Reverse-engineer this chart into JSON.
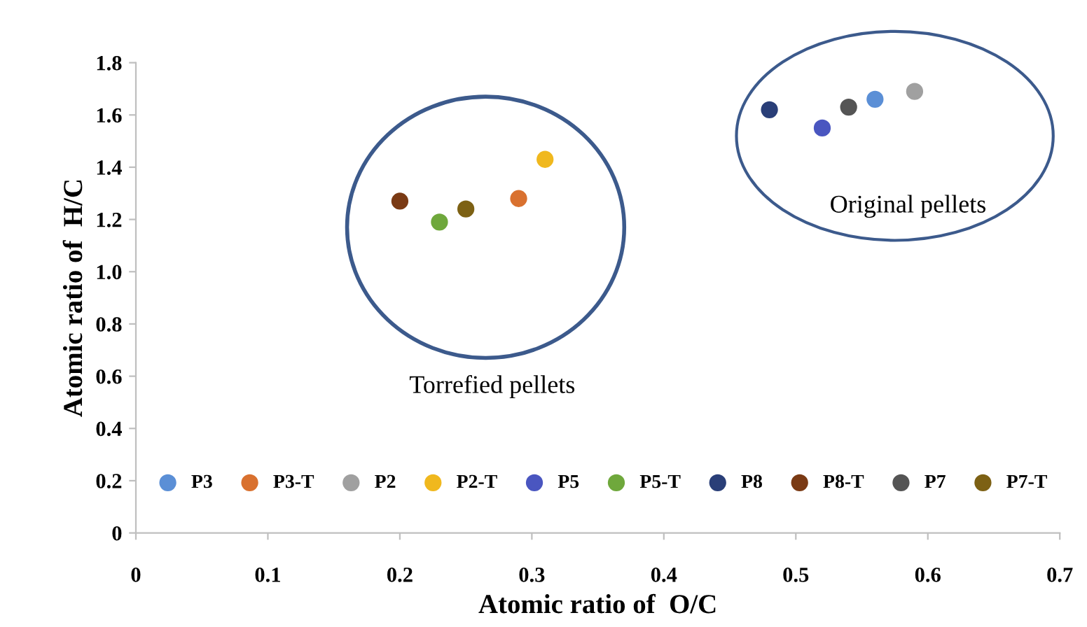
{
  "chart_data": {
    "type": "scatter",
    "xlabel": "Atomic ratio of  O/C",
    "ylabel": "Atomic ratio of  H/C",
    "xlim": [
      0,
      0.7
    ],
    "xticks": [
      0,
      0.1,
      0.2,
      0.3,
      0.4,
      0.5,
      0.6,
      0.7
    ],
    "ylim": [
      0,
      1.8
    ],
    "yticks": [
      0,
      {
        "value": 0.2,
        "label": "0.2"
      },
      {
        "value": 0.4,
        "label": "0.4"
      },
      {
        "value": 0.6,
        "label": "0.6"
      },
      {
        "value": 0.8,
        "label": "0.8"
      },
      {
        "value": 1.0,
        "label": "1.0"
      },
      {
        "value": 1.2,
        "label": "1.2"
      },
      {
        "value": 1.4,
        "label": "1.4"
      },
      {
        "value": 1.6,
        "label": "1.6"
      },
      {
        "value": 1.8,
        "label": "1.8"
      }
    ],
    "grid": false,
    "legend": "bottom",
    "marker": "circle",
    "annotations": [
      "Torrefied pellets",
      "Original pellets"
    ],
    "series": [
      {
        "name": "P3",
        "color": "#5b8fd6",
        "x": [
          0.56
        ],
        "values": [
          1.66
        ]
      },
      {
        "name": "P3-T",
        "color": "#d9712f",
        "x": [
          0.29
        ],
        "values": [
          1.28
        ]
      },
      {
        "name": "P2",
        "color": "#a0a0a0",
        "x": [
          0.59
        ],
        "values": [
          1.69
        ]
      },
      {
        "name": "P2-T",
        "color": "#f0b81e",
        "x": [
          0.31
        ],
        "values": [
          1.43
        ]
      },
      {
        "name": "P5",
        "color": "#4a56c0",
        "x": [
          0.52
        ],
        "values": [
          1.55
        ]
      },
      {
        "name": "P5-T",
        "color": "#6fa83c",
        "x": [
          0.23
        ],
        "values": [
          1.19
        ]
      },
      {
        "name": "P8",
        "color": "#2a3f78",
        "x": [
          0.48
        ],
        "values": [
          1.62
        ]
      },
      {
        "name": "P8-T",
        "color": "#7a3a14",
        "x": [
          0.2
        ],
        "values": [
          1.27
        ]
      },
      {
        "name": "P7",
        "color": "#555555",
        "x": [
          0.54
        ],
        "values": [
          1.63
        ]
      },
      {
        "name": "P7-T",
        "color": "#7d6114",
        "x": [
          0.25
        ],
        "values": [
          1.24
        ]
      }
    ]
  }
}
